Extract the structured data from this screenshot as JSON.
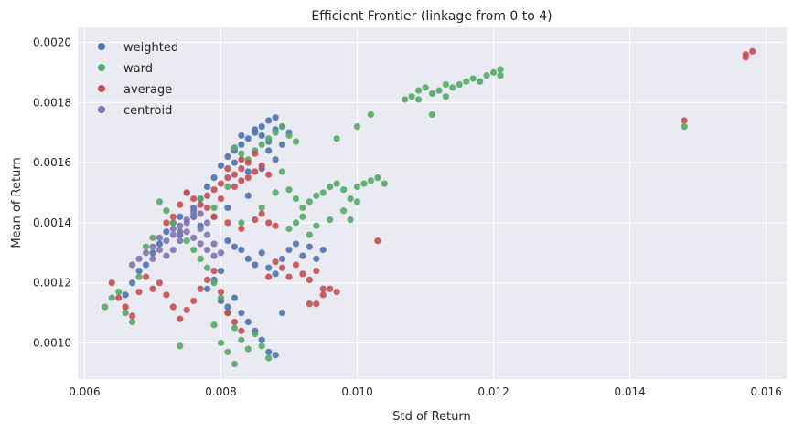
{
  "chart_data": {
    "type": "scatter",
    "title": "Efficient Frontier (linkage from 0 to 4)",
    "xlabel": "Std of Return",
    "ylabel": "Mean of Return",
    "xlim": [
      0.0059,
      0.0163
    ],
    "ylim": [
      0.00088,
      0.00205
    ],
    "xticks": [
      0.006,
      0.008,
      0.01,
      0.012,
      0.014,
      0.016
    ],
    "xtick_labels": [
      "0.006",
      "0.008",
      "0.010",
      "0.012",
      "0.014",
      "0.016"
    ],
    "yticks": [
      0.001,
      0.0012,
      0.0014,
      0.0016,
      0.0018,
      0.002
    ],
    "ytick_labels": [
      "0.0010",
      "0.0012",
      "0.0014",
      "0.0016",
      "0.0018",
      "0.0020"
    ],
    "grid": true,
    "legend": "top-left",
    "series": [
      {
        "name": "weighted",
        "color": "#4c72b0",
        "points": [
          [
            0.0081,
            0.00162
          ],
          [
            0.0082,
            0.00164
          ],
          [
            0.0083,
            0.00166
          ],
          [
            0.0084,
            0.00168
          ],
          [
            0.0085,
            0.0017
          ],
          [
            0.0086,
            0.00172
          ],
          [
            0.0087,
            0.00174
          ],
          [
            0.0088,
            0.00175
          ],
          [
            0.0089,
            0.00172
          ],
          [
            0.009,
            0.0017
          ],
          [
            0.0083,
            0.00169
          ],
          [
            0.0085,
            0.00171
          ],
          [
            0.0086,
            0.00169
          ],
          [
            0.0087,
            0.00167
          ],
          [
            0.0088,
            0.00171
          ],
          [
            0.008,
            0.00159
          ],
          [
            0.0079,
            0.00155
          ],
          [
            0.0078,
            0.00152
          ],
          [
            0.0077,
            0.00148
          ],
          [
            0.0076,
            0.00145
          ],
          [
            0.0075,
            0.0015
          ],
          [
            0.0074,
            0.00142
          ],
          [
            0.0073,
            0.0014
          ],
          [
            0.0072,
            0.00137
          ],
          [
            0.0071,
            0.00133
          ],
          [
            0.007,
            0.0013
          ],
          [
            0.0069,
            0.00126
          ],
          [
            0.0068,
            0.00124
          ],
          [
            0.0067,
            0.0012
          ],
          [
            0.0066,
            0.00116
          ],
          [
            0.0081,
            0.00134
          ],
          [
            0.0082,
            0.00132
          ],
          [
            0.0083,
            0.00131
          ],
          [
            0.0084,
            0.00128
          ],
          [
            0.0085,
            0.00126
          ],
          [
            0.0086,
            0.0013
          ],
          [
            0.0087,
            0.00125
          ],
          [
            0.0088,
            0.00123
          ],
          [
            0.0089,
            0.00128
          ],
          [
            0.009,
            0.00131
          ],
          [
            0.0091,
            0.00133
          ],
          [
            0.0092,
            0.00129
          ],
          [
            0.0093,
            0.00132
          ],
          [
            0.0094,
            0.00128
          ],
          [
            0.0095,
            0.00131
          ],
          [
            0.008,
            0.00114
          ],
          [
            0.0081,
            0.00112
          ],
          [
            0.0082,
            0.00115
          ],
          [
            0.0083,
            0.0011
          ],
          [
            0.0084,
            0.00107
          ],
          [
            0.0085,
            0.00104
          ],
          [
            0.0086,
            0.00101
          ],
          [
            0.0087,
            0.00097
          ],
          [
            0.0088,
            0.00096
          ],
          [
            0.0089,
            0.0011
          ],
          [
            0.0078,
            0.00118
          ],
          [
            0.0079,
            0.00121
          ],
          [
            0.008,
            0.00124
          ],
          [
            0.0084,
            0.00157
          ],
          [
            0.0086,
            0.00158
          ],
          [
            0.0088,
            0.00161
          ],
          [
            0.0082,
            0.0016
          ],
          [
            0.0079,
            0.00142
          ],
          [
            0.0081,
            0.00145
          ],
          [
            0.0084,
            0.00149
          ],
          [
            0.0076,
            0.00142
          ],
          [
            0.0077,
            0.00139
          ],
          [
            0.0074,
            0.00136
          ],
          [
            0.0087,
            0.00164
          ],
          [
            0.0089,
            0.00166
          ]
        ]
      },
      {
        "name": "ward",
        "color": "#55a868",
        "points": [
          [
            0.0063,
            0.00112
          ],
          [
            0.0064,
            0.00115
          ],
          [
            0.0065,
            0.00117
          ],
          [
            0.0066,
            0.0011
          ],
          [
            0.0067,
            0.00107
          ],
          [
            0.0068,
            0.00122
          ],
          [
            0.0069,
            0.00132
          ],
          [
            0.007,
            0.00135
          ],
          [
            0.0071,
            0.00147
          ],
          [
            0.0072,
            0.00144
          ],
          [
            0.0073,
            0.0014
          ],
          [
            0.0074,
            0.00137
          ],
          [
            0.0075,
            0.00134
          ],
          [
            0.0076,
            0.00131
          ],
          [
            0.0077,
            0.00128
          ],
          [
            0.0078,
            0.00125
          ],
          [
            0.0079,
            0.0012
          ],
          [
            0.008,
            0.00115
          ],
          [
            0.0081,
            0.0011
          ],
          [
            0.0082,
            0.00105
          ],
          [
            0.0083,
            0.00101
          ],
          [
            0.0084,
            0.00098
          ],
          [
            0.0085,
            0.00103
          ],
          [
            0.0086,
            0.00099
          ],
          [
            0.0087,
            0.00095
          ],
          [
            0.008,
            0.001
          ],
          [
            0.0081,
            0.00097
          ],
          [
            0.0082,
            0.00093
          ],
          [
            0.0074,
            0.00099
          ],
          [
            0.0079,
            0.00106
          ],
          [
            0.0082,
            0.00165
          ],
          [
            0.0083,
            0.00163
          ],
          [
            0.0084,
            0.00161
          ],
          [
            0.0085,
            0.00164
          ],
          [
            0.0086,
            0.00166
          ],
          [
            0.0087,
            0.00168
          ],
          [
            0.0088,
            0.0017
          ],
          [
            0.0089,
            0.00172
          ],
          [
            0.009,
            0.00169
          ],
          [
            0.0091,
            0.00167
          ],
          [
            0.0089,
            0.00157
          ],
          [
            0.009,
            0.00151
          ],
          [
            0.0091,
            0.00148
          ],
          [
            0.0092,
            0.00145
          ],
          [
            0.0093,
            0.00147
          ],
          [
            0.0094,
            0.00149
          ],
          [
            0.0095,
            0.0015
          ],
          [
            0.0096,
            0.00152
          ],
          [
            0.0097,
            0.00153
          ],
          [
            0.0098,
            0.00151
          ],
          [
            0.0099,
            0.00148
          ],
          [
            0.01,
            0.00152
          ],
          [
            0.0101,
            0.00153
          ],
          [
            0.0102,
            0.00154
          ],
          [
            0.0103,
            0.00155
          ],
          [
            0.0104,
            0.00153
          ],
          [
            0.009,
            0.00138
          ],
          [
            0.0091,
            0.0014
          ],
          [
            0.0092,
            0.00142
          ],
          [
            0.0093,
            0.00136
          ],
          [
            0.0094,
            0.00139
          ],
          [
            0.0096,
            0.00141
          ],
          [
            0.0098,
            0.00144
          ],
          [
            0.01,
            0.00147
          ],
          [
            0.0099,
            0.00141
          ],
          [
            0.0097,
            0.00168
          ],
          [
            0.01,
            0.00172
          ],
          [
            0.0102,
            0.00176
          ],
          [
            0.0107,
            0.00181
          ],
          [
            0.0108,
            0.00182
          ],
          [
            0.0109,
            0.00184
          ],
          [
            0.011,
            0.00185
          ],
          [
            0.0111,
            0.00183
          ],
          [
            0.0112,
            0.00184
          ],
          [
            0.0113,
            0.00186
          ],
          [
            0.0114,
            0.00185
          ],
          [
            0.0115,
            0.00186
          ],
          [
            0.0116,
            0.00187
          ],
          [
            0.0117,
            0.00188
          ],
          [
            0.0118,
            0.00187
          ],
          [
            0.0119,
            0.00189
          ],
          [
            0.012,
            0.0019
          ],
          [
            0.0121,
            0.00191
          ],
          [
            0.0121,
            0.00189
          ],
          [
            0.0111,
            0.00176
          ],
          [
            0.0109,
            0.00181
          ],
          [
            0.0113,
            0.00182
          ],
          [
            0.0148,
            0.00172
          ],
          [
            0.0083,
            0.0014
          ],
          [
            0.0086,
            0.00145
          ],
          [
            0.0088,
            0.0015
          ],
          [
            0.0079,
            0.00145
          ],
          [
            0.0077,
            0.00148
          ],
          [
            0.0081,
            0.00152
          ],
          [
            0.0076,
            0.00143
          ]
        ]
      },
      {
        "name": "average",
        "color": "#c44e52",
        "points": [
          [
            0.0064,
            0.0012
          ],
          [
            0.0065,
            0.00115
          ],
          [
            0.0066,
            0.00112
          ],
          [
            0.0067,
            0.00109
          ],
          [
            0.0068,
            0.00117
          ],
          [
            0.0069,
            0.00122
          ],
          [
            0.007,
            0.00118
          ],
          [
            0.0071,
            0.0012
          ],
          [
            0.0072,
            0.00116
          ],
          [
            0.0073,
            0.00112
          ],
          [
            0.0074,
            0.00108
          ],
          [
            0.0075,
            0.00111
          ],
          [
            0.0076,
            0.00114
          ],
          [
            0.0077,
            0.00118
          ],
          [
            0.0078,
            0.00121
          ],
          [
            0.0079,
            0.00124
          ],
          [
            0.008,
            0.00117
          ],
          [
            0.0081,
            0.0011
          ],
          [
            0.0082,
            0.00107
          ],
          [
            0.0083,
            0.00104
          ],
          [
            0.0072,
            0.0014
          ],
          [
            0.0073,
            0.00142
          ],
          [
            0.0074,
            0.00146
          ],
          [
            0.0075,
            0.0015
          ],
          [
            0.0076,
            0.00148
          ],
          [
            0.0077,
            0.00146
          ],
          [
            0.0078,
            0.00149
          ],
          [
            0.0079,
            0.00151
          ],
          [
            0.008,
            0.00153
          ],
          [
            0.0081,
            0.00155
          ],
          [
            0.0082,
            0.00156
          ],
          [
            0.0083,
            0.00158
          ],
          [
            0.0084,
            0.0016
          ],
          [
            0.0085,
            0.00157
          ],
          [
            0.0086,
            0.00159
          ],
          [
            0.0087,
            0.00156
          ],
          [
            0.0082,
            0.00152
          ],
          [
            0.0083,
            0.00154
          ],
          [
            0.0084,
            0.00155
          ],
          [
            0.008,
            0.00148
          ],
          [
            0.0078,
            0.00145
          ],
          [
            0.0079,
            0.00142
          ],
          [
            0.0081,
            0.0014
          ],
          [
            0.0083,
            0.00138
          ],
          [
            0.0085,
            0.00141
          ],
          [
            0.0086,
            0.00143
          ],
          [
            0.0087,
            0.0014
          ],
          [
            0.0088,
            0.00139
          ],
          [
            0.0089,
            0.00125
          ],
          [
            0.009,
            0.00122
          ],
          [
            0.0091,
            0.00126
          ],
          [
            0.0092,
            0.00123
          ],
          [
            0.0093,
            0.00121
          ],
          [
            0.0094,
            0.00124
          ],
          [
            0.0095,
            0.00118
          ],
          [
            0.0096,
            0.00118
          ],
          [
            0.0097,
            0.00117
          ],
          [
            0.0095,
            0.00116
          ],
          [
            0.0094,
            0.00113
          ],
          [
            0.0093,
            0.00113
          ],
          [
            0.0087,
            0.00122
          ],
          [
            0.0088,
            0.00127
          ],
          [
            0.0103,
            0.00134
          ],
          [
            0.0148,
            0.00174
          ],
          [
            0.0157,
            0.00195
          ],
          [
            0.0157,
            0.00196
          ],
          [
            0.0158,
            0.00197
          ],
          [
            0.0081,
            0.00158
          ],
          [
            0.0083,
            0.00161
          ],
          [
            0.0085,
            0.00163
          ]
        ]
      },
      {
        "name": "centroid",
        "color": "#8172b3",
        "points": [
          [
            0.0068,
            0.00128
          ],
          [
            0.0069,
            0.0013
          ],
          [
            0.007,
            0.00132
          ],
          [
            0.0071,
            0.00135
          ],
          [
            0.0072,
            0.00134
          ],
          [
            0.0073,
            0.00136
          ],
          [
            0.0074,
            0.00139
          ],
          [
            0.0075,
            0.0014
          ],
          [
            0.0076,
            0.00142
          ],
          [
            0.0077,
            0.00138
          ],
          [
            0.0078,
            0.00136
          ],
          [
            0.0079,
            0.00133
          ],
          [
            0.008,
            0.0013
          ],
          [
            0.0075,
            0.00137
          ],
          [
            0.0076,
            0.00135
          ],
          [
            0.0077,
            0.00133
          ],
          [
            0.0078,
            0.00131
          ],
          [
            0.0074,
            0.00134
          ],
          [
            0.0073,
            0.00131
          ],
          [
            0.0072,
            0.00129
          ],
          [
            0.0076,
            0.00144
          ],
          [
            0.0077,
            0.00143
          ],
          [
            0.0075,
            0.00141
          ],
          [
            0.0074,
            0.00137
          ],
          [
            0.0079,
            0.00129
          ],
          [
            0.0067,
            0.00126
          ],
          [
            0.007,
            0.00128
          ],
          [
            0.0071,
            0.00131
          ],
          [
            0.0078,
            0.0014
          ],
          [
            0.0073,
            0.00138
          ]
        ]
      }
    ]
  }
}
